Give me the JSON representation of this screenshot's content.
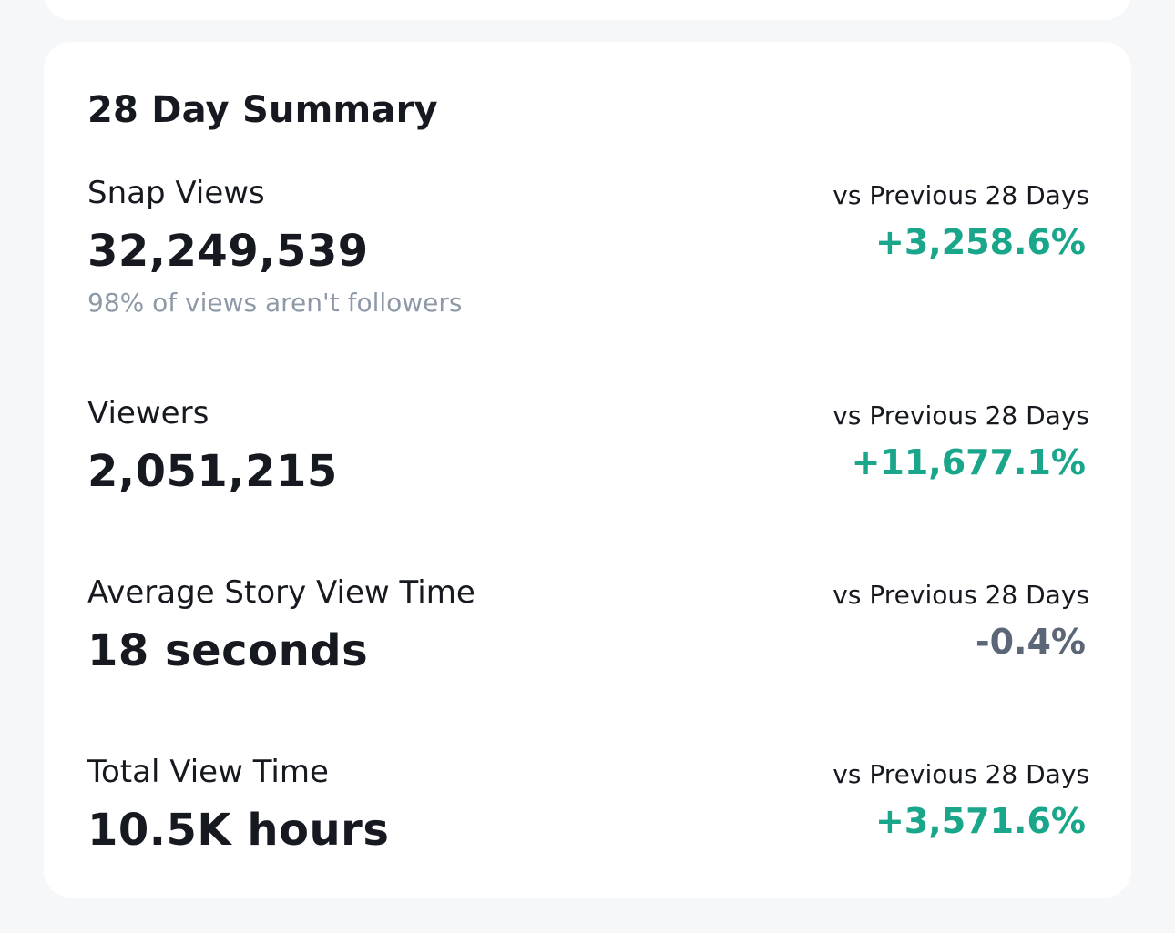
{
  "summary": {
    "title": "28 Day Summary",
    "compare_label": "vs Previous 28 Days",
    "metrics": [
      {
        "label": "Snap Views",
        "value": "32,249,539",
        "note": "98% of views aren't followers",
        "compare_label": "vs Previous 28 Days",
        "change": "+3,258.6%"
      },
      {
        "label": "Viewers",
        "value": "2,051,215",
        "compare_label": "vs Previous 28 Days",
        "change": "+11,677.1%"
      },
      {
        "label": "Average Story View Time",
        "value": "18 seconds",
        "compare_label": "vs Previous 28 Days",
        "change": "-0.4%"
      },
      {
        "label": "Total View Time",
        "value": "10.5K hours",
        "compare_label": "vs Previous 28 Days",
        "change": "+3,571.6%"
      }
    ]
  },
  "colors": {
    "background": "#f6f7f9",
    "card": "#ffffff",
    "text": "#16191f",
    "muted": "#8e99a8",
    "positive": "#1aa68a",
    "neutral_negative": "#5b6676"
  }
}
